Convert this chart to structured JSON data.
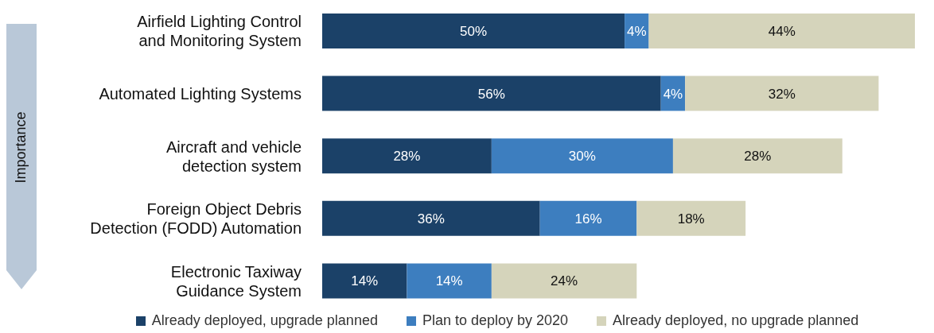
{
  "chart_data": {
    "type": "bar",
    "orientation": "horizontal",
    "stacked": true,
    "ylabel": "Importance",
    "categories": [
      "Airfield Lighting Control\nand Monitoring System",
      "Automated Lighting Systems",
      "Aircraft and vehicle\ndetection system",
      "Foreign Object Debris\nDetection (FODD) Automation",
      "Electronic Taxiway\nGuidance System"
    ],
    "series": [
      {
        "name": "Already deployed, upgrade planned",
        "color": "#1b4168",
        "values": [
          50,
          56,
          28,
          36,
          14
        ],
        "value_labels": [
          "50%",
          "56%",
          "28%",
          "36%",
          "14%"
        ]
      },
      {
        "name": "Plan to deploy by 2020",
        "color": "#3d7ebf",
        "values": [
          4,
          4,
          30,
          16,
          14
        ],
        "value_labels": [
          "4%",
          "4%",
          "30%",
          "16%",
          "14%"
        ]
      },
      {
        "name": "Already deployed, no upgrade planned",
        "color": "#d5d4bb",
        "values": [
          44,
          32,
          28,
          18,
          24
        ],
        "value_labels": [
          "44%",
          "32%",
          "28%",
          "18%",
          "24%"
        ]
      }
    ],
    "legend": "bottom",
    "grid": false
  }
}
